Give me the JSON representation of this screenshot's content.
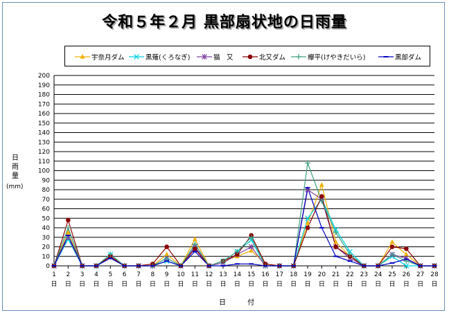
{
  "chart_data": {
    "type": "line",
    "title": "令和５年２月 黒部扇状地の日雨量",
    "ylabel": "日雨量",
    "yunit": "(mm)",
    "xlabel": "日 付",
    "ylim": [
      0,
      200
    ],
    "ytick_step": 10,
    "grid": true,
    "legend_position": "top",
    "x": [
      1,
      2,
      3,
      4,
      5,
      6,
      7,
      8,
      9,
      10,
      11,
      12,
      13,
      14,
      15,
      16,
      17,
      18,
      19,
      20,
      21,
      22,
      23,
      24,
      25,
      26,
      27,
      28
    ],
    "x_suffix": "日",
    "series": [
      {
        "name": "宇奈月ダム",
        "color": "#f0b000",
        "marker": "triangle",
        "values": [
          0,
          35,
          0,
          0,
          10,
          0,
          0,
          0,
          12,
          0,
          28,
          0,
          5,
          10,
          16,
          2,
          0,
          0,
          45,
          85,
          25,
          10,
          0,
          0,
          25,
          12,
          0,
          0
        ]
      },
      {
        "name": "黒薙(くろなぎ)",
        "color": "#00d0e0",
        "marker": "x",
        "values": [
          0,
          28,
          0,
          0,
          12,
          0,
          0,
          0,
          5,
          0,
          20,
          0,
          5,
          15,
          27,
          0,
          0,
          0,
          50,
          70,
          38,
          15,
          0,
          0,
          10,
          0,
          0,
          0
        ]
      },
      {
        "name": "猫　又",
        "color": "#8040a0",
        "marker": "asterisk",
        "values": [
          0,
          30,
          0,
          0,
          9,
          0,
          0,
          0,
          8,
          0,
          20,
          0,
          3,
          12,
          20,
          0,
          0,
          0,
          80,
          70,
          20,
          8,
          0,
          0,
          12,
          8,
          0,
          0
        ]
      },
      {
        "name": "北又ダム",
        "color": "#8b0000",
        "marker": "circle",
        "values": [
          0,
          48,
          0,
          0,
          10,
          0,
          0,
          2,
          20,
          0,
          18,
          0,
          5,
          12,
          32,
          2,
          0,
          0,
          40,
          73,
          20,
          10,
          0,
          0,
          20,
          18,
          0,
          0
        ]
      },
      {
        "name": "欅平(けやきだいら)",
        "color": "#40a080",
        "marker": "plus",
        "values": [
          0,
          40,
          0,
          0,
          12,
          0,
          0,
          0,
          8,
          0,
          23,
          0,
          5,
          15,
          30,
          0,
          0,
          0,
          108,
          68,
          35,
          12,
          0,
          0,
          12,
          5,
          0,
          0
        ]
      },
      {
        "name": "黒部ダム",
        "color": "#0000c0",
        "marker": "dash",
        "values": [
          0,
          32,
          0,
          0,
          8,
          0,
          0,
          0,
          5,
          0,
          15,
          0,
          0,
          2,
          2,
          0,
          0,
          0,
          82,
          40,
          10,
          5,
          0,
          0,
          3,
          7,
          0,
          0
        ]
      }
    ]
  }
}
